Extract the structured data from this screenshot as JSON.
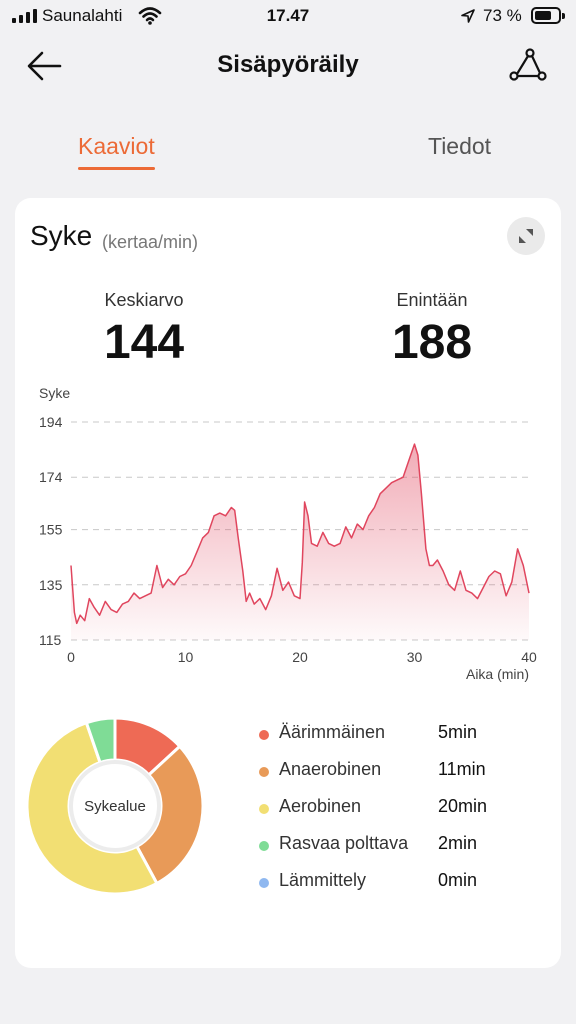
{
  "status_bar": {
    "carrier": "Saunalahti",
    "time": "17.47",
    "battery": "73 %"
  },
  "nav": {
    "title": "Sisäpyöräily"
  },
  "tabs": [
    {
      "label": "Kaaviot",
      "active": true
    },
    {
      "label": "Tiedot",
      "active": false
    }
  ],
  "colors": {
    "accent": "#ec6a36",
    "line": "#e0465e",
    "zone_extreme": "#ee6a55",
    "zone_anaerobic": "#e89a58",
    "zone_aerobic": "#f2df73",
    "zone_fatburn": "#7fdc96",
    "zone_warmup": "#8fb8f0"
  },
  "card": {
    "title": "Syke",
    "unit": "(kertaa/min)",
    "average_label": "Keskiarvo",
    "average_value": "144",
    "max_label": "Enintään",
    "max_value": "188"
  },
  "chart_data": {
    "type": "area",
    "title": "",
    "ylabel": "Syke",
    "xlabel": "Aika (min)",
    "yticks": [
      "115",
      "135",
      "155",
      "174",
      "194"
    ],
    "xticks": [
      "0",
      "10",
      "20",
      "30",
      "40"
    ],
    "ylim": [
      115,
      194
    ],
    "xlim": [
      0,
      40
    ],
    "grid": true,
    "x": [
      0,
      0.3,
      0.5,
      0.8,
      1.2,
      1.6,
      2.0,
      2.5,
      3.0,
      3.5,
      4.0,
      4.5,
      5.0,
      5.5,
      6.0,
      6.5,
      7.0,
      7.5,
      8.0,
      8.5,
      9.0,
      9.5,
      10.0,
      10.5,
      11.0,
      11.5,
      12.0,
      12.5,
      13.0,
      13.5,
      14.0,
      14.3,
      14.6,
      15.0,
      15.3,
      15.6,
      16.0,
      16.5,
      17.0,
      17.5,
      18.0,
      18.5,
      19.0,
      19.5,
      20.0,
      20.2,
      20.4,
      20.7,
      21.0,
      21.5,
      22.0,
      22.5,
      23.0,
      23.5,
      24.0,
      24.5,
      25.0,
      25.5,
      26.0,
      26.5,
      27.0,
      27.5,
      28.0,
      28.5,
      29.0,
      29.5,
      30.0,
      30.3,
      30.6,
      31.0,
      31.3,
      31.6,
      32.0,
      32.5,
      33.0,
      33.5,
      34.0,
      34.5,
      35.0,
      35.5,
      36.0,
      36.5,
      37.0,
      37.5,
      38.0,
      38.5,
      39.0,
      39.5,
      40.0
    ],
    "series": [
      {
        "values": [
          142,
          125,
          121,
          124,
          122,
          130,
          127,
          124,
          129,
          126,
          125,
          128,
          129,
          132,
          130,
          131,
          132,
          142,
          134,
          137,
          135,
          138,
          139,
          142,
          147,
          152,
          154,
          160,
          161,
          160,
          163,
          162,
          152,
          140,
          129,
          132,
          128,
          130,
          126,
          131,
          141,
          133,
          136,
          131,
          130,
          143,
          165,
          160,
          150,
          149,
          154,
          150,
          149,
          150,
          156,
          152,
          157,
          155,
          160,
          163,
          168,
          170,
          172,
          173,
          174,
          180,
          186,
          182,
          168,
          148,
          142,
          142,
          144,
          140,
          135,
          133,
          140,
          133,
          132,
          130,
          134,
          138,
          140,
          139,
          131,
          136,
          148,
          142,
          132
        ]
      }
    ]
  },
  "zones": {
    "center_label": "Sykealue",
    "items": [
      {
        "name": "Äärimmäinen",
        "duration": "5min",
        "minutes": 5,
        "color": "#ee6a55"
      },
      {
        "name": "Anaerobinen",
        "duration": "11min",
        "minutes": 11,
        "color": "#e89a58"
      },
      {
        "name": "Aerobinen",
        "duration": "20min",
        "minutes": 20,
        "color": "#f2df73"
      },
      {
        "name": "Rasvaa polttava",
        "duration": "2min",
        "minutes": 2,
        "color": "#7fdc96"
      },
      {
        "name": "Lämmittely",
        "duration": "0min",
        "minutes": 0,
        "color": "#8fb8f0"
      }
    ]
  }
}
